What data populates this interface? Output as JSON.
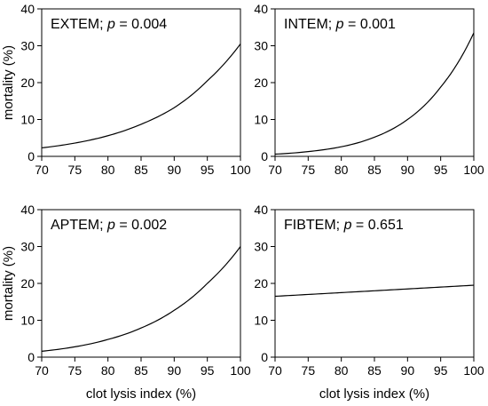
{
  "chart_data": [
    {
      "type": "line",
      "title_prefix": "EXTEM; ",
      "title_p_symbol": "p",
      "title_p_value": " = 0.004",
      "xlabel": "",
      "ylabel": "mortality (%)",
      "xlim": [
        70,
        100
      ],
      "ylim": [
        0,
        40
      ],
      "x_ticks": [
        "70",
        "75",
        "80",
        "85",
        "90",
        "95",
        "100"
      ],
      "y_ticks": [
        "0",
        "10",
        "20",
        "30",
        "40"
      ],
      "series": [
        {
          "x": [
            70,
            75,
            80,
            85,
            90,
            95,
            100
          ],
          "y": [
            2.3,
            3.6,
            5.6,
            8.7,
            13.2,
            20.5,
            30.5
          ]
        }
      ]
    },
    {
      "type": "line",
      "title_prefix": "INTEM; ",
      "title_p_symbol": "p",
      "title_p_value": " = 0.001",
      "xlabel": "",
      "ylabel": "",
      "xlim": [
        70,
        100
      ],
      "ylim": [
        0,
        40
      ],
      "x_ticks": [
        "70",
        "75",
        "80",
        "85",
        "90",
        "95",
        "100"
      ],
      "y_ticks": [
        "0",
        "10",
        "20",
        "30",
        "40"
      ],
      "series": [
        {
          "x": [
            70,
            75,
            80,
            85,
            90,
            95,
            100
          ],
          "y": [
            0.6,
            1.3,
            2.6,
            5.2,
            10.0,
            18.8,
            33.5
          ]
        }
      ]
    },
    {
      "type": "line",
      "title_prefix": "APTEM; ",
      "title_p_symbol": "p",
      "title_p_value": " = 0.002",
      "xlabel": "clot lysis index (%)",
      "ylabel": "mortality (%)",
      "xlim": [
        70,
        100
      ],
      "ylim": [
        0,
        40
      ],
      "x_ticks": [
        "70",
        "75",
        "80",
        "85",
        "90",
        "95",
        "100"
      ],
      "y_ticks": [
        "0",
        "10",
        "20",
        "30",
        "40"
      ],
      "series": [
        {
          "x": [
            70,
            75,
            80,
            85,
            90,
            95,
            100
          ],
          "y": [
            1.6,
            2.8,
            4.8,
            7.9,
            12.7,
            20.0,
            30.0
          ]
        }
      ]
    },
    {
      "type": "line",
      "title_prefix": "FIBTEM; ",
      "title_p_symbol": "p",
      "title_p_value": " = 0.651",
      "xlabel": "clot lysis index (%)",
      "ylabel": "",
      "xlim": [
        70,
        100
      ],
      "ylim": [
        0,
        40
      ],
      "x_ticks": [
        "70",
        "75",
        "80",
        "85",
        "90",
        "95",
        "100"
      ],
      "y_ticks": [
        "0",
        "10",
        "20",
        "30",
        "40"
      ],
      "series": [
        {
          "x": [
            70,
            75,
            80,
            85,
            90,
            95,
            100
          ],
          "y": [
            16.5,
            17.0,
            17.5,
            18.0,
            18.5,
            19.0,
            19.5
          ]
        }
      ]
    }
  ]
}
